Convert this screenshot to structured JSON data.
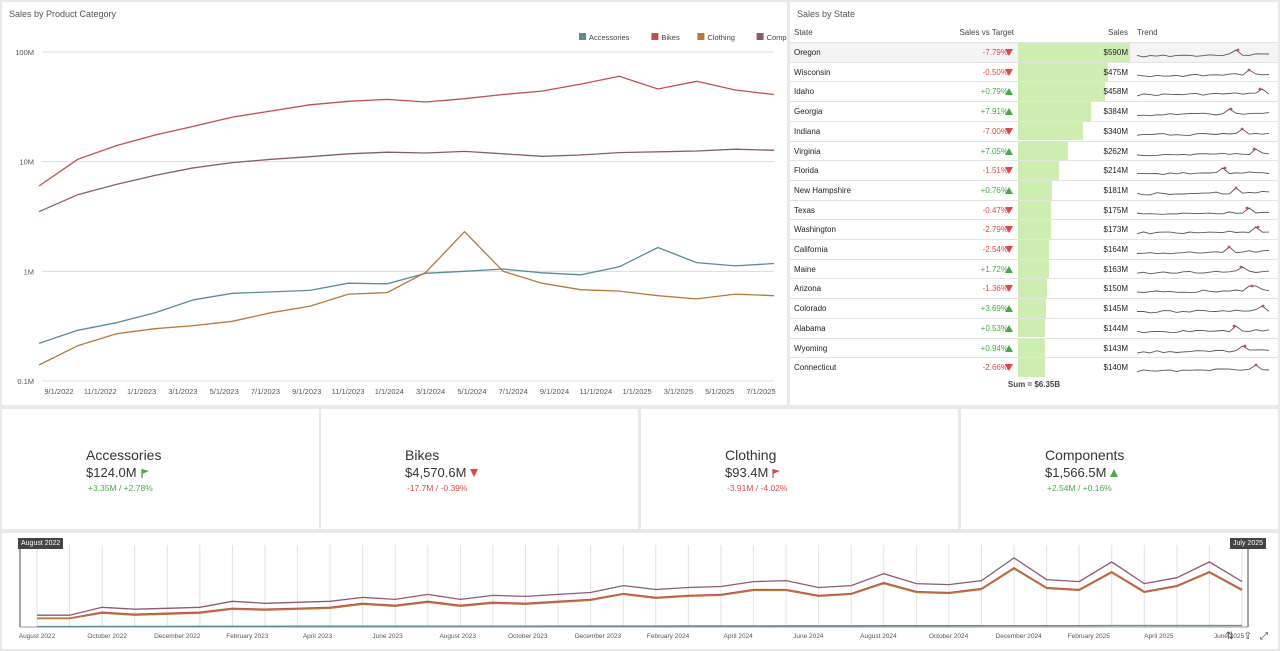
{
  "chart_panel": {
    "title": "Sales by Product Category",
    "chart_data": {
      "type": "line",
      "yscale": "log",
      "ylim": [
        0.1,
        100
      ],
      "y_ticks": [
        "100M",
        "10M",
        "1M",
        "0.1M"
      ],
      "x_ticks": [
        "9/1/2022",
        "11/1/2022",
        "1/1/2023",
        "3/1/2023",
        "5/1/2023",
        "7/1/2023",
        "9/1/2023",
        "11/1/2023",
        "1/1/2024",
        "3/1/2024",
        "5/1/2024",
        "7/1/2024",
        "9/1/2024",
        "11/1/2024",
        "1/1/2025",
        "3/1/2025",
        "5/1/2025",
        "7/1/2025"
      ],
      "legend_position": "top-right",
      "series": [
        {
          "name": "Accessories",
          "color": "#5b8a9b",
          "values": [
            0.22,
            0.29,
            0.34,
            0.42,
            0.55,
            0.63,
            0.65,
            0.67,
            0.78,
            0.77,
            0.96,
            1.0,
            1.05,
            0.97,
            0.93,
            1.1,
            1.65,
            1.2,
            1.12,
            1.18
          ]
        },
        {
          "name": "Bikes",
          "color": "#c0504d",
          "values": [
            6,
            10.5,
            14,
            17.5,
            21,
            25.5,
            29,
            33,
            35.5,
            37,
            35,
            37.5,
            41,
            44,
            51,
            60,
            46,
            54,
            45,
            41
          ]
        },
        {
          "name": "Clothing",
          "color": "#b8783a",
          "values": [
            0.14,
            0.21,
            0.27,
            0.3,
            0.32,
            0.35,
            0.42,
            0.48,
            0.62,
            0.64,
            0.98,
            2.3,
            1.0,
            0.78,
            0.68,
            0.66,
            0.6,
            0.56,
            0.62,
            0.6
          ]
        },
        {
          "name": "Components",
          "color": "#8a5a75",
          "values": [
            3.5,
            5.0,
            6.2,
            7.5,
            8.8,
            9.8,
            10.5,
            11.1,
            11.8,
            12.2,
            12.0,
            12.4,
            11.8,
            11.2,
            11.5,
            12.1,
            12.3,
            12.5,
            13.0,
            12.7
          ]
        }
      ]
    }
  },
  "grid": {
    "title": "Sales by State",
    "headers": {
      "state": "State",
      "vs_target": "Sales vs Target",
      "sales": "Sales",
      "trend": "Trend"
    },
    "sum_text": "Sum = $6.35B",
    "max_sales": 590,
    "rows": [
      {
        "state": "Oregon",
        "delta": "-7.79%",
        "dir": "down",
        "sales": "$590M",
        "value": 590
      },
      {
        "state": "Wisconsin",
        "delta": "-0.50%",
        "dir": "down",
        "sales": "$475M",
        "value": 475
      },
      {
        "state": "Idaho",
        "delta": "+0.79%",
        "dir": "up",
        "sales": "$458M",
        "value": 458
      },
      {
        "state": "Georgia",
        "delta": "+7.91%",
        "dir": "up",
        "sales": "$384M",
        "value": 384
      },
      {
        "state": "Indiana",
        "delta": "-7.00%",
        "dir": "down",
        "sales": "$340M",
        "value": 340
      },
      {
        "state": "Virginia",
        "delta": "+7.05%",
        "dir": "up",
        "sales": "$262M",
        "value": 262
      },
      {
        "state": "Florida",
        "delta": "-1.51%",
        "dir": "down",
        "sales": "$214M",
        "value": 214
      },
      {
        "state": "New Hampshire",
        "delta": "+0.76%",
        "dir": "up",
        "sales": "$181M",
        "value": 181
      },
      {
        "state": "Texas",
        "delta": "-0.47%",
        "dir": "down",
        "sales": "$175M",
        "value": 175
      },
      {
        "state": "Washington",
        "delta": "-2.79%",
        "dir": "down",
        "sales": "$173M",
        "value": 173
      },
      {
        "state": "California",
        "delta": "-2.54%",
        "dir": "down",
        "sales": "$164M",
        "value": 164
      },
      {
        "state": "Maine",
        "delta": "+1.72%",
        "dir": "up",
        "sales": "$163M",
        "value": 163
      },
      {
        "state": "Arizona",
        "delta": "-1.36%",
        "dir": "down",
        "sales": "$150M",
        "value": 150
      },
      {
        "state": "Colorado",
        "delta": "+3.69%",
        "dir": "up",
        "sales": "$145M",
        "value": 145
      },
      {
        "state": "Alabama",
        "delta": "+0.53%",
        "dir": "up",
        "sales": "$144M",
        "value": 144
      },
      {
        "state": "Wyoming",
        "delta": "+0.94%",
        "dir": "up",
        "sales": "$143M",
        "value": 143
      },
      {
        "state": "Connecticut",
        "delta": "-2.66%",
        "dir": "down",
        "sales": "$140M",
        "value": 140
      }
    ]
  },
  "cards": [
    {
      "name": "Accessories",
      "value": "$124.0M",
      "delta": "+3.35M / +2.78%",
      "status": "positive",
      "icon": "green-flag-icon"
    },
    {
      "name": "Bikes",
      "value": "$4,570.6M",
      "delta": "-17.7M / -0.39%",
      "status": "negative",
      "icon": "red-down-triangle-icon"
    },
    {
      "name": "Clothing",
      "value": "$93.4M",
      "delta": "-3.91M / -4.02%",
      "status": "negative",
      "icon": "red-flag-icon"
    },
    {
      "name": "Components",
      "value": "$1,566.5M",
      "delta": "+2.54M / +0.16%",
      "status": "positive",
      "icon": "green-up-triangle-icon"
    }
  ],
  "range": {
    "start_flag": "August 2022",
    "end_flag": "July 2025",
    "x_labels": [
      "August 2022",
      "October 2022",
      "December 2022",
      "February 2023",
      "April 2023",
      "June 2023",
      "August 2023",
      "October 2023",
      "December 2023",
      "February 2024",
      "April 2024",
      "June 2024",
      "August 2024",
      "October 2024",
      "December 2024",
      "February 2025",
      "April 2025",
      "June 2025"
    ],
    "chart_data": {
      "type": "line",
      "series": [
        {
          "name": "Components",
          "color": "#8a5a75",
          "values": [
            12,
            12,
            20,
            18,
            19,
            20,
            26,
            24,
            25,
            26,
            30,
            28,
            33,
            28,
            32,
            31,
            33,
            35,
            42,
            38,
            40,
            41,
            46,
            47,
            40,
            42,
            54,
            44,
            43,
            47,
            70,
            48,
            46,
            66,
            44,
            50,
            66,
            46
          ]
        },
        {
          "name": "Bikes",
          "color": "#c0504d",
          "values": [
            9,
            9,
            15,
            13,
            14,
            15,
            19,
            18,
            19,
            20,
            24,
            22,
            26,
            22,
            25,
            24,
            26,
            28,
            34,
            30,
            32,
            33,
            38,
            38,
            32,
            34,
            45,
            36,
            35,
            39,
            60,
            40,
            38,
            56,
            36,
            42,
            56,
            38
          ]
        },
        {
          "name": "Clothing",
          "color": "#b8783a",
          "values": [
            8.5,
            8.5,
            14,
            12,
            13,
            14,
            18,
            17,
            18,
            19,
            23,
            21,
            25,
            21,
            24,
            23,
            25,
            27,
            33,
            29,
            31,
            32,
            37,
            37,
            31,
            33,
            44,
            35,
            34,
            38,
            59,
            39,
            37,
            55,
            35,
            41,
            55,
            37
          ]
        },
        {
          "name": "Accessories",
          "color": "#5b8a9b",
          "values": [
            0.5,
            0.5,
            0.6,
            0.6,
            0.6,
            0.7,
            0.7,
            0.7,
            0.8,
            0.8,
            0.8,
            0.8,
            0.9,
            0.9,
            0.9,
            0.9,
            1,
            1,
            1,
            1,
            1.1,
            1.1,
            1.1,
            1.2,
            1.2,
            1.2,
            1.3,
            1.3,
            1.3,
            1.4,
            1.4,
            1.4,
            1.4,
            1.5,
            1.5,
            1.5,
            1.5,
            1.5
          ]
        }
      ]
    }
  }
}
